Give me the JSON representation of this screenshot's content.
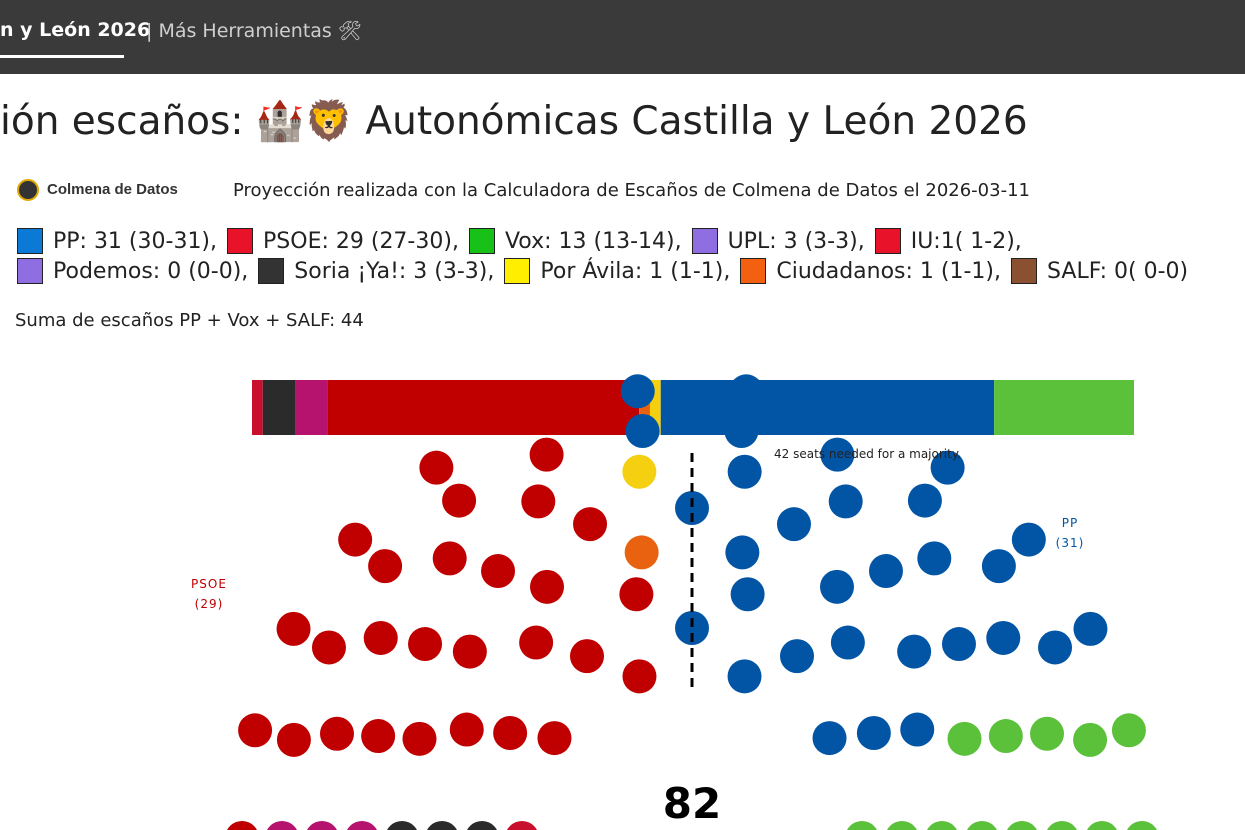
{
  "nav": {
    "active": "n y León 2026",
    "more": "| Más Herramientas 🛠"
  },
  "title": "ión escaños: 🏰🦁 Autonómicas Castilla y León 2026",
  "brand": "Colmena de Datos",
  "projection": "Proyección realizada con la Calculadora de Escaños de Colmena de Datos el 2026-03-11",
  "legend": [
    [
      {
        "color": "#0a7ad6",
        "label": "PP: 31 (30-31),"
      },
      {
        "color": "#e8132a",
        "label": "PSOE: 29 (27-30),"
      },
      {
        "color": "#18c118",
        "label": "Vox: 13 (13-14),"
      },
      {
        "color": "#8e6ee0",
        "label": "UPL: 3 (3-3),"
      },
      {
        "color": "#e8132a",
        "label": "IU:1( 1-2),"
      }
    ],
    [
      {
        "color": "#8e6ee0",
        "label": "Podemos: 0 (0-0),"
      },
      {
        "color": "#333333",
        "label": "Soria ¡Ya!: 3 (3-3),"
      },
      {
        "color": "#ffee00",
        "label": "Por Ávila: 1 (1-1),"
      },
      {
        "color": "#f26010",
        "label": "Ciudadanos: 1 (1-1),"
      },
      {
        "color": "#8a5030",
        "label": "SALF: 0( 0-0)"
      }
    ]
  ],
  "sum": "Suma de escaños PP + Vox + SALF: 44",
  "chart": {
    "total": 82,
    "majority_note": "42 seats needed for a majority.",
    "segments": [
      {
        "seats": 1,
        "color": "#c8102e"
      },
      {
        "seats": 3,
        "color": "#2b2b2b"
      },
      {
        "seats": 3,
        "color": "#b5136d"
      },
      {
        "seats": 29,
        "color": "#c00000"
      },
      {
        "seats": 1,
        "color": "#e8620f"
      },
      {
        "seats": 1,
        "color": "#f5d010"
      },
      {
        "seats": 31,
        "color": "#0255a5"
      },
      {
        "seats": 13,
        "color": "#5cc13a"
      }
    ],
    "side_labels": [
      {
        "name": "PSOE",
        "seats": "(29)",
        "color": "#c00000"
      },
      {
        "name": "PP",
        "seats": "(31)",
        "color": "#0255a5"
      }
    ]
  }
}
